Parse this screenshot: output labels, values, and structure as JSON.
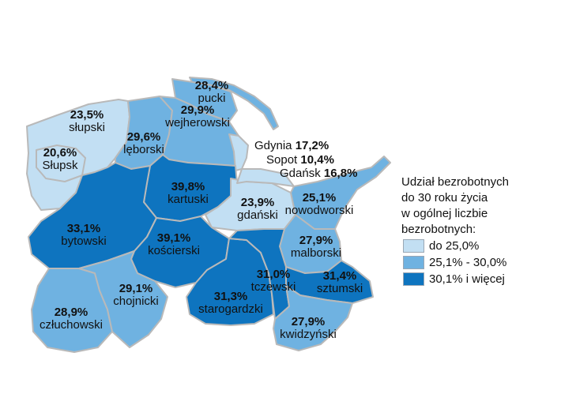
{
  "colors": {
    "low": "#c2dff3",
    "mid": "#6fb2e1",
    "high": "#0e74bf",
    "border": "#b9b9b9"
  },
  "counties": [
    {
      "id": "slupski",
      "name": "słupski",
      "value": "23,5%",
      "class": "low"
    },
    {
      "id": "slupsk",
      "name": "Słupsk",
      "value": "20,6%",
      "class": "low"
    },
    {
      "id": "leborski",
      "name": "lęborski",
      "value": "29,6%",
      "class": "mid"
    },
    {
      "id": "pucki",
      "name": "pucki",
      "value": "28,4%",
      "class": "mid"
    },
    {
      "id": "wejherowski",
      "name": "wejherowski",
      "value": "29,9%",
      "class": "mid"
    },
    {
      "id": "kartuski",
      "name": "kartuski",
      "value": "39,8%",
      "class": "high"
    },
    {
      "id": "bytowski",
      "name": "bytowski",
      "value": "33,1%",
      "class": "high"
    },
    {
      "id": "gdanski",
      "name": "gdański",
      "value": "23,9%",
      "class": "low"
    },
    {
      "id": "nowodworski",
      "name": "nowodworski",
      "value": "25,1%",
      "class": "mid"
    },
    {
      "id": "koscierski",
      "name": "kościerski",
      "value": "39,1%",
      "class": "high"
    },
    {
      "id": "malborski",
      "name": "malborski",
      "value": "27,9%",
      "class": "mid"
    },
    {
      "id": "czluchowski",
      "name": "człuchowski",
      "value": "28,9%",
      "class": "mid"
    },
    {
      "id": "chojnicki",
      "name": "chojnicki",
      "value": "29,1%",
      "class": "mid"
    },
    {
      "id": "starogardzki",
      "name": "starogardzki",
      "value": "31,3%",
      "class": "high"
    },
    {
      "id": "tczewski",
      "name": "tczewski",
      "value": "31,0%",
      "class": "high"
    },
    {
      "id": "sztumski",
      "name": "sztumski",
      "value": "31,4%",
      "class": "high"
    },
    {
      "id": "kwidzynski",
      "name": "kwidzyński",
      "value": "27,9%",
      "class": "mid"
    }
  ],
  "cities": [
    {
      "id": "gdynia",
      "name": "Gdynia",
      "value": "17,2%"
    },
    {
      "id": "sopot",
      "name": "Sopot",
      "value": "10,4%"
    },
    {
      "id": "gdansk",
      "name": "Gdańsk",
      "value": "16,8%"
    }
  ],
  "legend": {
    "title_lines": [
      "Udział bezrobotnych",
      "do 30 roku życia",
      "w ogólnej liczbie",
      "bezrobotnych:"
    ],
    "items": [
      {
        "label": "do 25,0%",
        "class": "low"
      },
      {
        "label": "25,1% - 30,0%",
        "class": "mid"
      },
      {
        "label": "30,1% i więcej",
        "class": "high"
      }
    ]
  }
}
